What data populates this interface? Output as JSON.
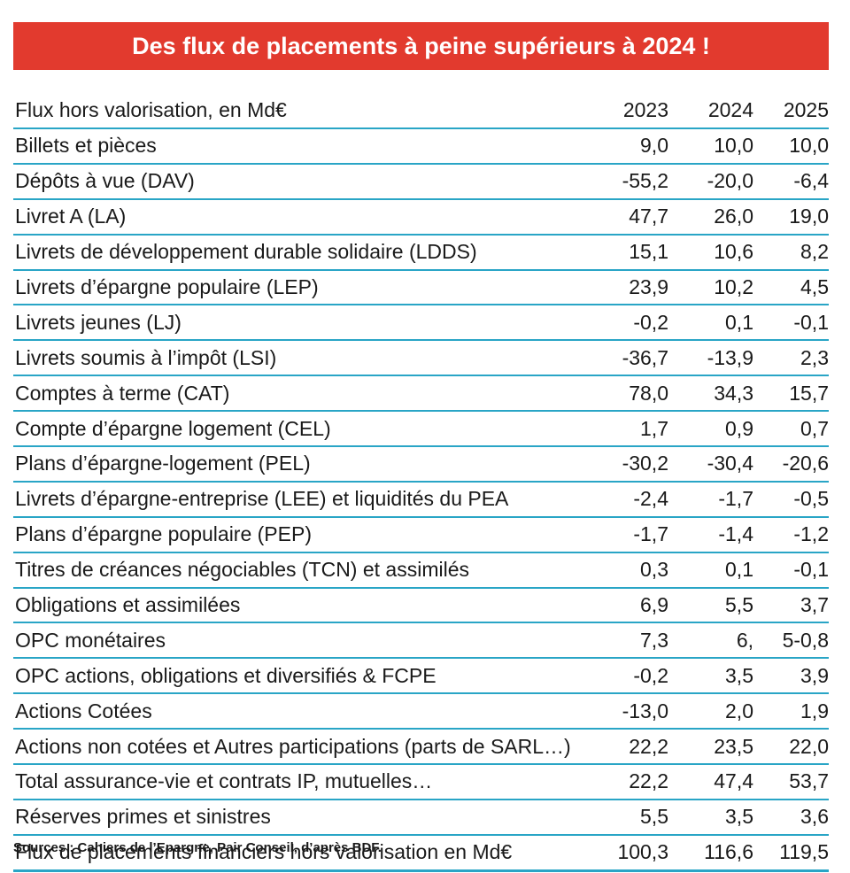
{
  "chart_data": {
    "type": "table",
    "title": "Des flux de placements à peine supérieurs à 2024  !",
    "columns": [
      "Flux hors valorisation, en Md€",
      "2023",
      "2024",
      "2025"
    ],
    "rows": [
      [
        "Billets et pièces",
        "9,0",
        "10,0",
        "10,0"
      ],
      [
        "Dépôts à vue (DAV)",
        "-55,2",
        "-20,0",
        "-6,4"
      ],
      [
        "Livret A (LA)",
        "47,7",
        "26,0",
        "19,0"
      ],
      [
        "Livrets de développement durable solidaire (LDDS)",
        "15,1",
        "10,6",
        "8,2"
      ],
      [
        "Livrets d’épargne populaire (LEP)",
        "23,9",
        "10,2",
        "4,5"
      ],
      [
        "Livrets jeunes (LJ)",
        "-0,2",
        "0,1",
        "-0,1"
      ],
      [
        "Livrets soumis à l’impôt (LSI)",
        "-36,7",
        "-13,9",
        "2,3"
      ],
      [
        "Comptes à terme (CAT)",
        "78,0",
        "34,3",
        "15,7"
      ],
      [
        "Compte d’épargne logement (CEL)",
        "1,7",
        "0,9",
        "0,7"
      ],
      [
        "Plans d’épargne-logement (PEL)",
        "-30,2",
        "-30,4",
        "-20,6"
      ],
      [
        "Livrets d’épargne-entreprise (LEE) et liquidités du PEA",
        "-2,4",
        "-1,7",
        "-0,5"
      ],
      [
        "Plans d’épargne populaire (PEP)",
        "-1,7",
        "-1,4",
        "-1,2"
      ],
      [
        "Titres de créances négociables (TCN) et assimilés",
        "0,3",
        "0,1",
        "-0,1"
      ],
      [
        "Obligations et assimilées",
        "6,9",
        "5,5",
        "3,7"
      ],
      [
        "OPC monétaires",
        "7,3",
        "6,",
        "5-0,8"
      ],
      [
        "OPC actions, obligations et diversifiés & FCPE",
        "-0,2",
        "3,5",
        "3,9"
      ],
      [
        "Actions Cotées",
        "-13,0",
        "2,0",
        "1,9"
      ],
      [
        "Actions non cotées et Autres participations (parts de SARL…)",
        "22,2",
        "23,5",
        "22,0"
      ],
      [
        "Total assurance-vie et contrats IP, mutuelles…",
        "22,2",
        "47,4",
        "53,7"
      ],
      [
        "Réserves primes et sinistres",
        "5,5",
        "3,5",
        "3,6"
      ],
      [
        "Flux de placements financiers hors valorisation en Md€",
        "100,3",
        "116,6",
        "119,5"
      ]
    ],
    "source": "Sources : Cahiers de l’Epargne, Pair Conseil, d’après BDF."
  },
  "colors": {
    "banner": "#e23a2e",
    "rule": "#29a5c6",
    "text": "#1a1a1a"
  }
}
